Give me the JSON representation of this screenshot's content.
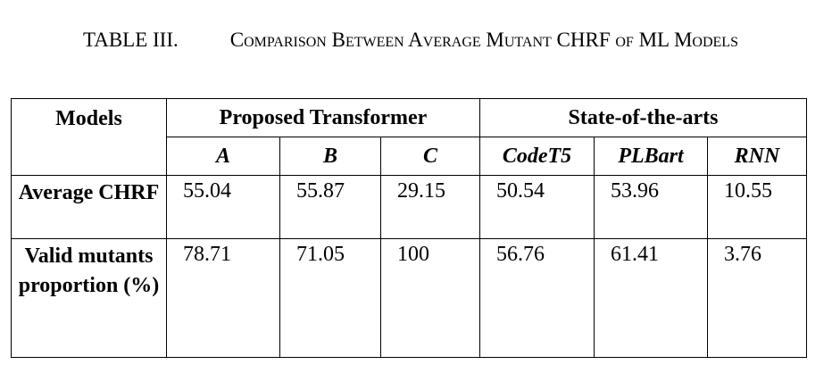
{
  "caption": {
    "label": "TABLE III.",
    "text": "Comparison Between Average Mutant CHRF of ML Models"
  },
  "table": {
    "corner": "Models",
    "groups": [
      "Proposed Transformer",
      "State-of-the-arts"
    ],
    "columns": [
      "A",
      "B",
      "C",
      "CodeT5",
      "PLBart",
      "RNN"
    ],
    "rows": [
      {
        "label": "Average CHRF",
        "values": [
          "55.04",
          "55.87",
          "29.15",
          "50.54",
          "53.96",
          "10.55"
        ]
      },
      {
        "label": "Valid mutants proportion (%)",
        "values": [
          "78.71",
          "71.05",
          "100",
          "56.76",
          "61.41",
          "3.76"
        ]
      }
    ]
  }
}
